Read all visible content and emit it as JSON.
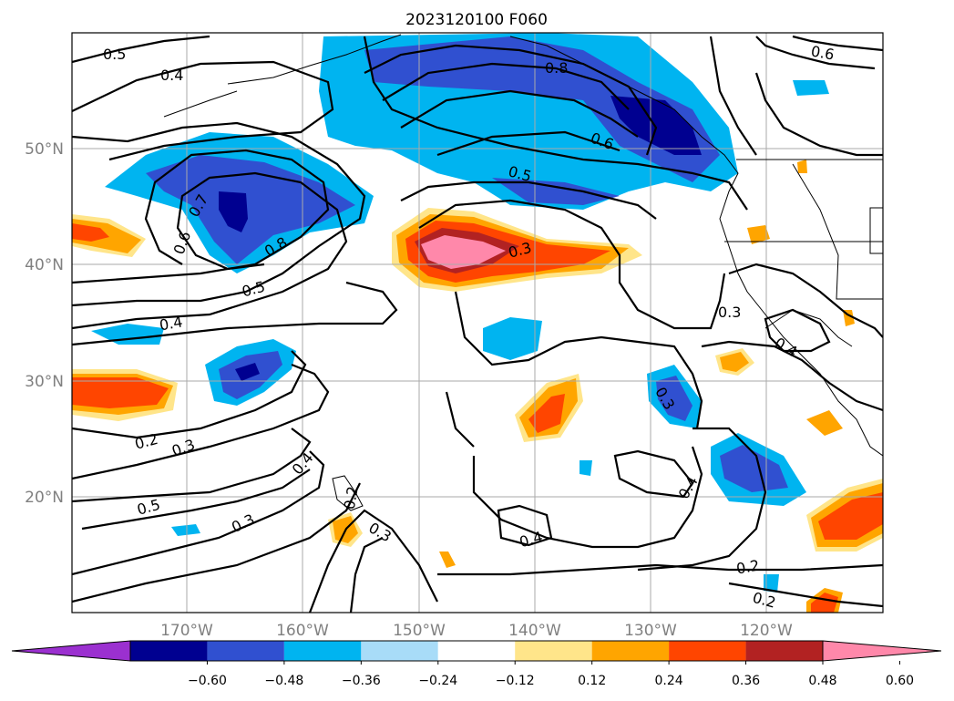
{
  "title": "2023120100 F060",
  "map": {
    "lat_labels": [
      "50°N",
      "40°N",
      "30°N",
      "20°N"
    ],
    "lon_labels": [
      "170°W",
      "160°W",
      "150°W",
      "140°W",
      "130°W",
      "120°W"
    ],
    "contour_labels": [
      "0.5",
      "0.4",
      "0.6",
      "0.7",
      "0.8",
      "0.8",
      "0.6",
      "0.5",
      "0.3",
      "0.5",
      "0.4",
      "0.3",
      "0.4",
      "0.3",
      "0.2",
      "0.3",
      "0.4",
      "0.5",
      "0.3",
      "0.2",
      "0.3",
      "0.4",
      "0.4",
      "0.2",
      "0.2",
      "0.6"
    ]
  },
  "colorbar": {
    "ticks": [
      "−0.60",
      "−0.48",
      "−0.36",
      "−0.24",
      "−0.12",
      "0.12",
      "0.24",
      "0.36",
      "0.48",
      "0.60"
    ],
    "colors": [
      "#9b30d0",
      "#000090",
      "#3050d0",
      "#00b4f0",
      "#a8dcf8",
      "#ffffff",
      "#ffe58a",
      "#ffa500",
      "#ff4500",
      "#b22222",
      "#ff88aa"
    ]
  }
}
